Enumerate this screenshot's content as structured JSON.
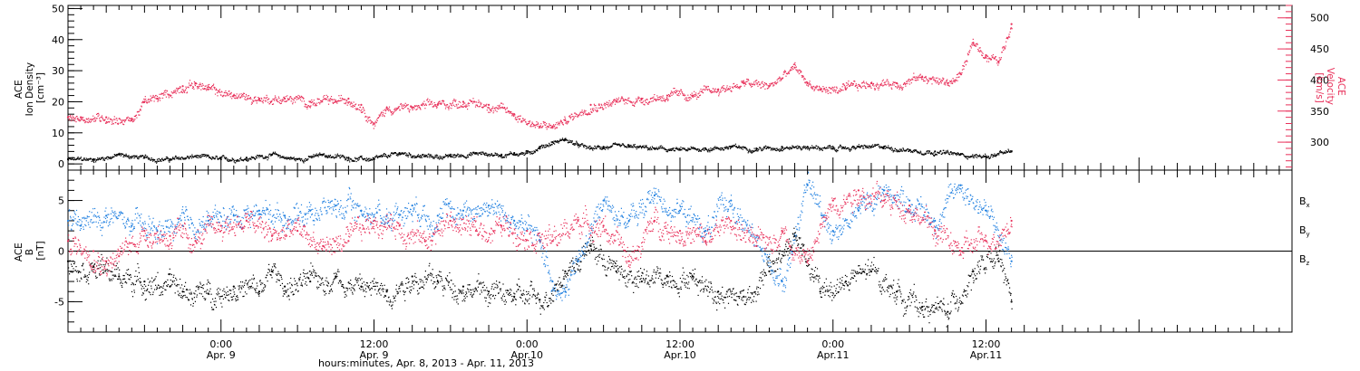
{
  "colors": {
    "black": "#000000",
    "red": "#e8305a",
    "blue": "#1f7fe0",
    "axis": "#000000"
  },
  "xaxis": {
    "label": "hours:minutes, Apr.  8, 2013 - Apr. 11, 2013",
    "range_hours": [
      0,
      96
    ],
    "ticks": [
      {
        "hour": 12,
        "time": "0:00",
        "date": "Apr. 9"
      },
      {
        "hour": 24,
        "time": "12:00",
        "date": "Apr. 9"
      },
      {
        "hour": 36,
        "time": "0:00",
        "date": "Apr.10"
      },
      {
        "hour": 48,
        "time": "12:00",
        "date": "Apr.10"
      },
      {
        "hour": 60,
        "time": "0:00",
        "date": "Apr.11"
      },
      {
        "hour": 72,
        "time": "12:00",
        "date": "Apr.11"
      }
    ]
  },
  "chart_data": [
    {
      "type": "scatter",
      "panel": "top",
      "ylabel_lines": [
        "ACE",
        "Ion Density",
        "[cm⁻³]"
      ],
      "ylim": [
        -2,
        51
      ],
      "yticks": [
        0,
        10,
        20,
        30,
        40,
        50
      ],
      "y2label_lines": [
        "ACE",
        "Velocity",
        "[km/s]"
      ],
      "y2lim": [
        255,
        520
      ],
      "y2ticks": [
        300,
        350,
        400,
        450,
        500
      ],
      "grid": false,
      "series": [
        {
          "axis": "left",
          "color": "black",
          "x": [
            0,
            2,
            4,
            6,
            8,
            10,
            12,
            14,
            16,
            18,
            20,
            22,
            24,
            26,
            28,
            30,
            32,
            34,
            35,
            36,
            37,
            38,
            39,
            40,
            41,
            42,
            44,
            46,
            48,
            50,
            52,
            54,
            56,
            58,
            60,
            62,
            64,
            66,
            68,
            70,
            72,
            74
          ],
          "y": [
            1.5,
            1.5,
            3.0,
            2.0,
            1.5,
            2.5,
            1.5,
            2.0,
            3.0,
            1.5,
            3.0,
            2.0,
            1.5,
            3.5,
            2.5,
            2.5,
            3.5,
            3.0,
            3.5,
            3.5,
            5.5,
            7.0,
            8.0,
            6.0,
            5.0,
            5.5,
            5.5,
            5.0,
            4.5,
            5.0,
            5.5,
            5.0,
            5.5,
            5.5,
            5.0,
            5.5,
            5.5,
            4.5,
            4.0,
            3.0,
            2.5,
            4.0
          ]
        },
        {
          "axis": "right",
          "color": "red",
          "x": [
            0,
            1,
            3,
            5,
            6,
            7,
            9,
            10,
            11,
            13,
            15,
            17,
            19,
            21,
            22,
            23,
            24,
            25,
            27,
            29,
            31,
            33,
            35,
            37,
            38,
            39,
            41,
            43,
            45,
            47,
            49,
            51,
            53,
            55,
            57,
            58,
            59,
            61,
            63,
            65,
            67,
            69,
            70,
            71,
            72,
            73,
            74
          ],
          "y": [
            340,
            340,
            340,
            335,
            365,
            370,
            390,
            395,
            385,
            375,
            370,
            370,
            365,
            365,
            370,
            360,
            330,
            355,
            355,
            360,
            365,
            360,
            345,
            325,
            325,
            335,
            360,
            365,
            370,
            375,
            375,
            385,
            395,
            390,
            420,
            395,
            385,
            385,
            395,
            395,
            405,
            395,
            410,
            460,
            440,
            430,
            490
          ]
        }
      ]
    },
    {
      "type": "scatter",
      "panel": "bottom",
      "ylabel_lines": [
        "ACE",
        "B",
        "[nT]"
      ],
      "ylim": [
        -8,
        8
      ],
      "yticks": [
        -5,
        0,
        5
      ],
      "zero_line": true,
      "grid": false,
      "series": [
        {
          "name": "Bx",
          "name_main": "B",
          "name_sub": "x",
          "color": "black",
          "x": [
            0,
            2,
            4,
            6,
            8,
            9,
            11,
            13,
            15,
            16,
            17,
            19,
            21,
            23,
            25,
            27,
            29,
            31,
            33,
            35,
            37,
            39,
            41,
            43,
            45,
            47,
            49,
            51,
            53,
            55,
            57,
            59,
            61,
            63,
            65,
            67,
            69,
            71,
            73,
            74
          ],
          "y": [
            -1.0,
            -1.5,
            -2.5,
            -3.0,
            -3.5,
            -4.0,
            -4.2,
            -3.5,
            -4.0,
            -2.0,
            -3.5,
            -3.0,
            -2.5,
            -3.5,
            -4.0,
            -2.5,
            -3.0,
            -3.5,
            -4.0,
            -4.5,
            -4.8,
            -2.0,
            0.5,
            -2.0,
            -3.0,
            -2.5,
            -2.5,
            -4.0,
            -4.5,
            -2.0,
            1.5,
            -4.0,
            -3.0,
            -2.0,
            -4.0,
            -5.5,
            -6.0,
            -2.0,
            -1.0,
            -5.0
          ]
        },
        {
          "name": "By",
          "name_main": "B",
          "name_sub": "y",
          "color": "blue",
          "x": [
            0,
            1,
            3,
            5,
            7,
            9,
            11,
            13,
            15,
            17,
            19,
            21,
            23,
            25,
            27,
            29,
            31,
            33,
            35,
            37,
            38,
            39,
            40,
            42,
            44,
            46,
            48,
            50,
            52,
            54,
            56,
            58,
            60,
            62,
            64,
            66,
            68,
            70,
            72,
            74
          ],
          "y": [
            3.0,
            2.5,
            3.5,
            2.5,
            2.0,
            2.5,
            3.0,
            3.5,
            4.0,
            3.5,
            4.0,
            4.5,
            4.0,
            3.5,
            4.5,
            3.5,
            4.0,
            4.5,
            3.0,
            1.0,
            -3.0,
            -4.0,
            -1.0,
            5.0,
            3.0,
            5.5,
            4.0,
            2.0,
            5.0,
            0.5,
            -3.0,
            6.5,
            2.0,
            4.0,
            6.0,
            5.0,
            3.0,
            6.5,
            4.0,
            -1.0
          ]
        },
        {
          "name": "Bz",
          "name_main": "B",
          "name_sub": "z",
          "color": "red",
          "x": [
            0,
            2,
            3,
            4,
            6,
            8,
            10,
            12,
            14,
            16,
            18,
            20,
            22,
            24,
            26,
            28,
            30,
            32,
            34,
            36,
            38,
            40,
            42,
            44,
            46,
            48,
            50,
            52,
            54,
            56,
            58,
            60,
            62,
            64,
            66,
            68,
            70,
            72,
            74
          ],
          "y": [
            1.0,
            0.0,
            -1.0,
            -0.5,
            2.0,
            1.5,
            1.0,
            2.5,
            3.0,
            1.5,
            2.0,
            0.5,
            1.0,
            3.0,
            2.5,
            1.0,
            3.0,
            2.0,
            2.5,
            2.0,
            1.0,
            3.0,
            2.5,
            -1.0,
            3.0,
            2.0,
            1.0,
            3.0,
            0.5,
            2.0,
            -1.0,
            5.0,
            6.0,
            5.0,
            4.5,
            2.0,
            0.0,
            1.0,
            3.0
          ]
        }
      ]
    }
  ]
}
